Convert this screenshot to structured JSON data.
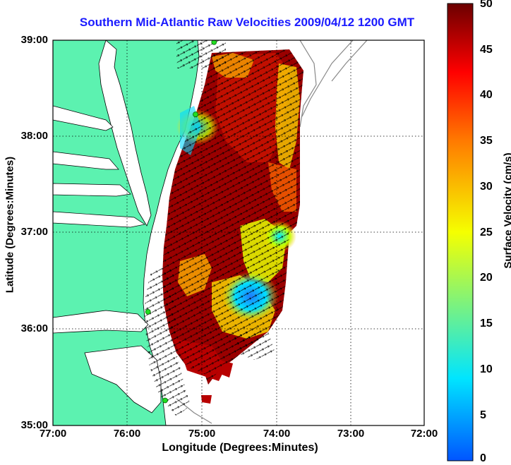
{
  "title": "Southern Mid-Atlantic Raw Velocities 2009/04/12 1200 GMT",
  "axes": {
    "xlabel": "Longitude (Degrees:Minutes)",
    "ylabel": "Latitude (Degrees:Minutes)",
    "xticks": [
      "77:00",
      "76:00",
      "75:00",
      "74:00",
      "73:00",
      "72:00"
    ],
    "yticks": [
      "39:00",
      "38:00",
      "37:00",
      "36:00",
      "35:00"
    ],
    "xlim": [
      -77,
      -72
    ],
    "ylim": [
      35,
      39
    ],
    "grid": true
  },
  "colorbar": {
    "label": "Surface Velocity (cm/s)",
    "ticks": [
      "50",
      "45",
      "40",
      "35",
      "30",
      "25",
      "20",
      "15",
      "10",
      "5",
      "0"
    ],
    "range": [
      0,
      50
    ],
    "colors": [
      "#0055ff",
      "#00e5ff",
      "#f5ff00",
      "#ff7a00",
      "#ff0000",
      "#6b0000"
    ]
  },
  "colors": {
    "land": "#5cf2b0",
    "water": "#ffffff",
    "title": "#1a1aff",
    "station": "#22dd22"
  },
  "stations": [
    {
      "name": "station-north",
      "lon": -74.83,
      "lat": 38.98
    },
    {
      "name": "station-delmarva",
      "lon": -75.08,
      "lat": 38.23
    },
    {
      "name": "station-duck",
      "lon": -75.72,
      "lat": 36.18
    },
    {
      "name": "station-hatteras",
      "lon": -75.49,
      "lat": 35.26
    }
  ]
}
